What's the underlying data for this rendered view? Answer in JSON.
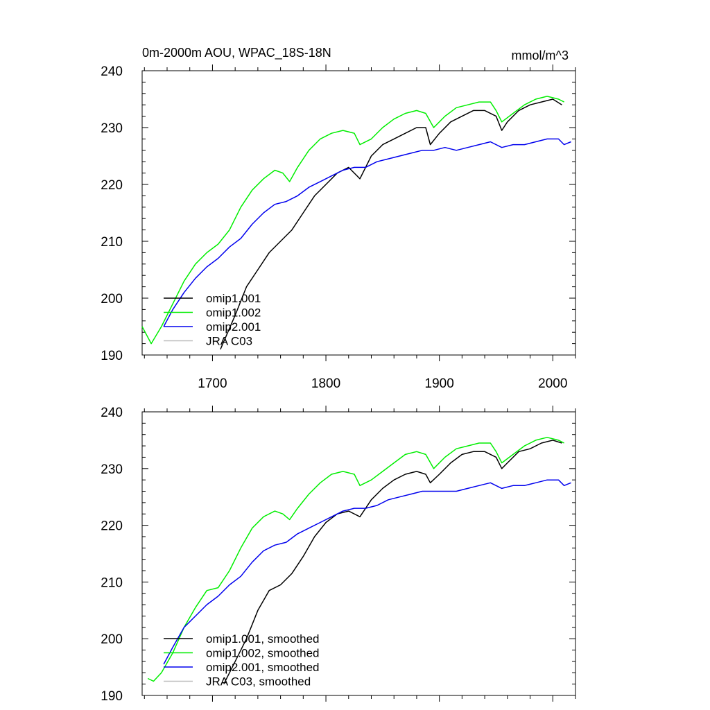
{
  "chart_data": [
    {
      "type": "line",
      "title": "0m-2000m AOU, WPAC_18S-18N",
      "units": "mmol/m^3",
      "xlim": [
        1638,
        2020
      ],
      "ylim": [
        190,
        240
      ],
      "x_ticks": [
        "1700",
        "1800",
        "1900",
        "2000"
      ],
      "y_ticks": [
        "190",
        "200",
        "210",
        "220",
        "230",
        "240"
      ],
      "legend": [
        "omip1.001",
        "omip1.002",
        "omip2.001",
        "JRA C03"
      ],
      "legend_position": "bottom-left",
      "colors": {
        "omip1.001": "#000000",
        "omip1.002": "#00ee00",
        "omip2.001": "#0000ee",
        "JRA C03": "#bbbbbb"
      },
      "series": [
        {
          "name": "omip1.001",
          "x": [
            1707,
            1720,
            1730,
            1740,
            1750,
            1760,
            1770,
            1780,
            1790,
            1800,
            1810,
            1820,
            1830,
            1840,
            1850,
            1860,
            1870,
            1880,
            1888,
            1892,
            1900,
            1910,
            1920,
            1930,
            1940,
            1950,
            1955,
            1960,
            1970,
            1980,
            1990,
            2000,
            2008
          ],
          "y": [
            191,
            197,
            202,
            205,
            208,
            210,
            212,
            215,
            218,
            220,
            222,
            223,
            221,
            225,
            227,
            228,
            229,
            230,
            230,
            227,
            229,
            231,
            232,
            233,
            233,
            232,
            229.5,
            231,
            233,
            234,
            234.5,
            235,
            234
          ]
        },
        {
          "name": "omip1.002",
          "x": [
            1638,
            1646,
            1655,
            1665,
            1675,
            1685,
            1695,
            1705,
            1715,
            1725,
            1735,
            1745,
            1755,
            1762,
            1768,
            1775,
            1785,
            1795,
            1805,
            1815,
            1825,
            1830,
            1840,
            1850,
            1860,
            1870,
            1880,
            1888,
            1895,
            1905,
            1915,
            1925,
            1935,
            1945,
            1950,
            1955,
            1965,
            1975,
            1985,
            1995,
            2005,
            2010
          ],
          "y": [
            195,
            192,
            195,
            199,
            203,
            206,
            208,
            209.5,
            212,
            216,
            219,
            221,
            222.5,
            222,
            220.5,
            223,
            226,
            228,
            229,
            229.5,
            229,
            227,
            228,
            230,
            231.5,
            232.5,
            233,
            232.5,
            230,
            232,
            233.5,
            234,
            234.5,
            234.5,
            233,
            231,
            232.5,
            234,
            235,
            235.5,
            235,
            234.5
          ]
        },
        {
          "name": "omip2.001",
          "x": [
            1657,
            1665,
            1675,
            1685,
            1695,
            1705,
            1715,
            1725,
            1735,
            1745,
            1755,
            1765,
            1775,
            1785,
            1795,
            1805,
            1815,
            1825,
            1835,
            1845,
            1855,
            1865,
            1875,
            1885,
            1895,
            1905,
            1915,
            1925,
            1935,
            1945,
            1955,
            1965,
            1975,
            1985,
            1995,
            2005,
            2010,
            2016
          ],
          "y": [
            195,
            198,
            201,
            203.5,
            205.5,
            207,
            209,
            210.5,
            213,
            215,
            216.5,
            217,
            218,
            219.5,
            220.5,
            221.5,
            222.5,
            223,
            223,
            224,
            224.5,
            225,
            225.5,
            226,
            226,
            226.5,
            226,
            226.5,
            227,
            227.5,
            226.5,
            227,
            227,
            227.5,
            228,
            228,
            227,
            227.5
          ]
        },
        {
          "name": "JRA C03",
          "x": [],
          "y": []
        }
      ]
    },
    {
      "type": "line",
      "title": "",
      "xlim": [
        1638,
        2020
      ],
      "ylim": [
        190,
        240
      ],
      "x_ticks": [],
      "y_ticks": [
        "190",
        "200",
        "210",
        "220",
        "230",
        "240"
      ],
      "legend": [
        "omip1.001, smoothed",
        "omip1.002, smoothed",
        "omip2.001, smoothed",
        "JRA C03, smoothed"
      ],
      "legend_position": "bottom-left",
      "colors": {
        "omip1.001, smoothed": "#000000",
        "omip1.002, smoothed": "#00ee00",
        "omip2.001, smoothed": "#0000ee",
        "JRA C03, smoothed": "#bbbbbb"
      },
      "series": [
        {
          "name": "omip1.001, smoothed",
          "x": [
            1710,
            1720,
            1730,
            1740,
            1750,
            1760,
            1770,
            1780,
            1790,
            1800,
            1810,
            1820,
            1830,
            1840,
            1850,
            1860,
            1870,
            1880,
            1888,
            1892,
            1900,
            1910,
            1920,
            1930,
            1940,
            1950,
            1955,
            1960,
            1970,
            1980,
            1990,
            2000,
            2008
          ],
          "y": [
            192,
            196,
            200,
            205,
            208.5,
            209.5,
            211.5,
            214.5,
            218,
            220.5,
            222,
            222.5,
            221.5,
            224.5,
            226.5,
            228,
            229,
            229.5,
            229,
            227.5,
            229,
            231,
            232.5,
            233,
            233,
            232,
            230,
            231,
            233,
            233.5,
            234.5,
            235,
            234.5
          ]
        },
        {
          "name": "omip1.002, smoothed",
          "x": [
            1643,
            1648,
            1655,
            1665,
            1675,
            1685,
            1695,
            1705,
            1715,
            1725,
            1735,
            1745,
            1755,
            1762,
            1768,
            1775,
            1785,
            1795,
            1805,
            1815,
            1825,
            1830,
            1840,
            1850,
            1860,
            1870,
            1880,
            1888,
            1895,
            1905,
            1915,
            1925,
            1935,
            1945,
            1950,
            1955,
            1965,
            1975,
            1985,
            1995,
            2005,
            2010
          ],
          "y": [
            193,
            192.5,
            194,
            197.5,
            202,
            205.5,
            208.5,
            209,
            212,
            216,
            219.5,
            221.5,
            222.5,
            222,
            221,
            223,
            225.5,
            227.5,
            229,
            229.5,
            229,
            227,
            228,
            229.5,
            231,
            232.5,
            233,
            232.5,
            230,
            232,
            233.5,
            234,
            234.5,
            234.5,
            233,
            231,
            232.5,
            234,
            235,
            235.5,
            235,
            234.5
          ]
        },
        {
          "name": "omip2.001, smoothed",
          "x": [
            1657,
            1665,
            1675,
            1685,
            1695,
            1705,
            1715,
            1725,
            1735,
            1745,
            1755,
            1765,
            1775,
            1785,
            1795,
            1805,
            1815,
            1825,
            1835,
            1845,
            1855,
            1865,
            1875,
            1885,
            1895,
            1905,
            1915,
            1925,
            1935,
            1945,
            1955,
            1965,
            1975,
            1985,
            1995,
            2005,
            2010,
            2016
          ],
          "y": [
            195.5,
            198.5,
            202,
            204,
            206,
            207.5,
            209.5,
            211,
            213.5,
            215.5,
            216.5,
            217,
            218.5,
            219.5,
            220.5,
            221.5,
            222.5,
            223,
            223,
            223.5,
            224.5,
            225,
            225.5,
            226,
            226,
            226,
            226,
            226.5,
            227,
            227.5,
            226.5,
            227,
            227,
            227.5,
            228,
            228,
            227,
            227.5
          ]
        },
        {
          "name": "JRA C03, smoothed",
          "x": [],
          "y": []
        }
      ]
    }
  ]
}
